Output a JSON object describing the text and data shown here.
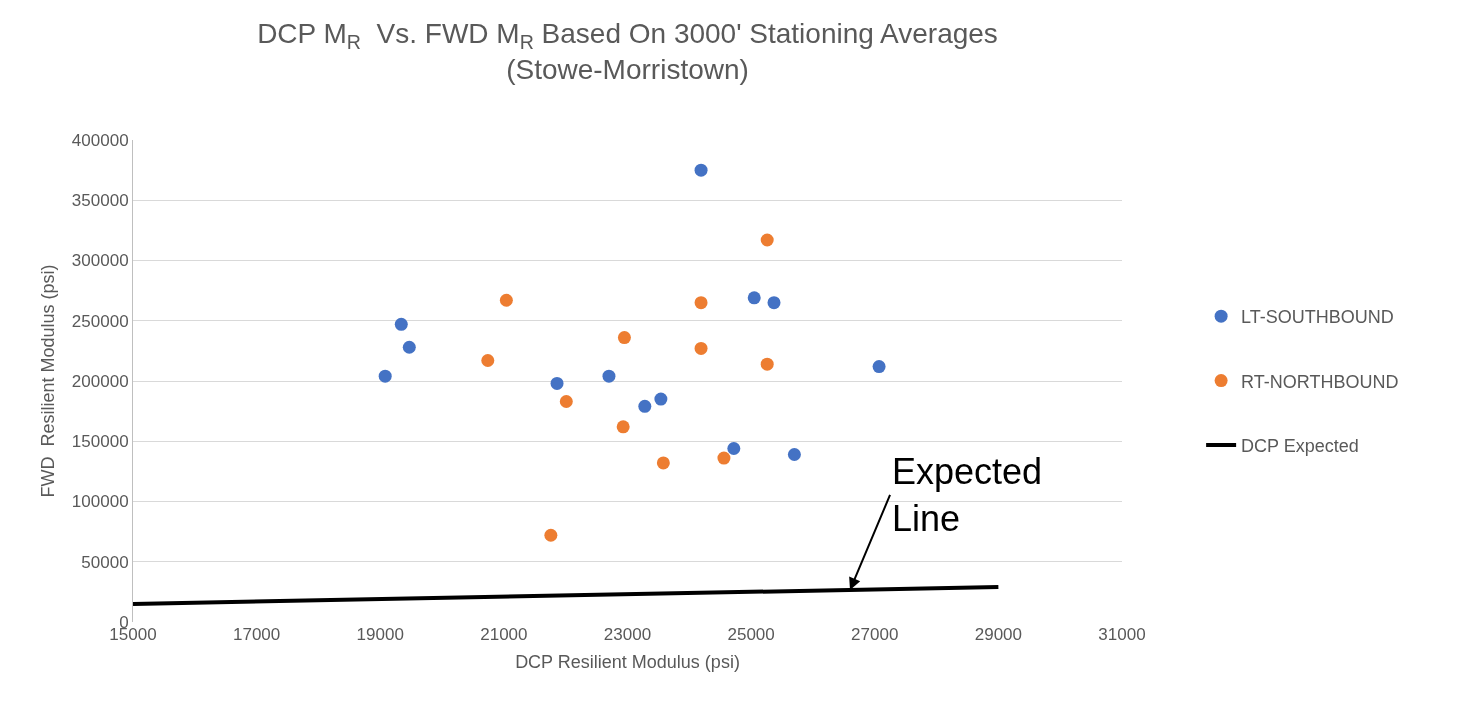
{
  "chart_data": {
    "type": "scatter",
    "title": "DCP M$_{R}$  Vs. FWD M$_{R}$ Based On 3000' Stationing Averages\n(Stowe-Morristown)",
    "xlabel": "DCP Resilient Modulus (psi)",
    "ylabel": "FWD  Resilient Modulus (psi)",
    "xlim": [
      15000,
      31000
    ],
    "xticks": [
      15000,
      17000,
      19000,
      21000,
      23000,
      25000,
      27000,
      29000,
      31000
    ],
    "ylim": [
      0,
      400000
    ],
    "yticks": [
      0,
      50000,
      100000,
      150000,
      200000,
      250000,
      300000,
      350000,
      400000
    ],
    "grid": "y",
    "legend": "right",
    "marker": "circle",
    "series": [
      {
        "name": "LT-SOUTHBOUND",
        "color": "#4472c4",
        "x": [
          19340,
          19470,
          19080,
          21860,
          22700,
          23280,
          23540,
          24190,
          25050,
          25370,
          27070,
          24720,
          25700
        ],
        "values": [
          247000,
          228000,
          204000,
          198000,
          204000,
          179000,
          185000,
          375000,
          269000,
          265000,
          212000,
          144000,
          139000
        ]
      },
      {
        "name": "RT-NORTHBOUND",
        "color": "#ed7d31",
        "x": [
          21040,
          20740,
          22010,
          22930,
          22950,
          21760,
          24190,
          24190,
          25260,
          25260,
          23580,
          24560
        ],
        "values": [
          267000,
          217000,
          183000,
          162000,
          236000,
          72000,
          265000,
          227000,
          317000,
          214000,
          132000,
          136000
        ]
      },
      {
        "name": "DCP Expected",
        "type": "line",
        "color": "#000000",
        "marker": "none",
        "x": [
          15000,
          29000
        ],
        "values": [
          15000,
          29000
        ]
      }
    ],
    "annotations": [
      {
        "text": "Expected\nLine",
        "x": 26600,
        "y": 26600
      }
    ]
  }
}
